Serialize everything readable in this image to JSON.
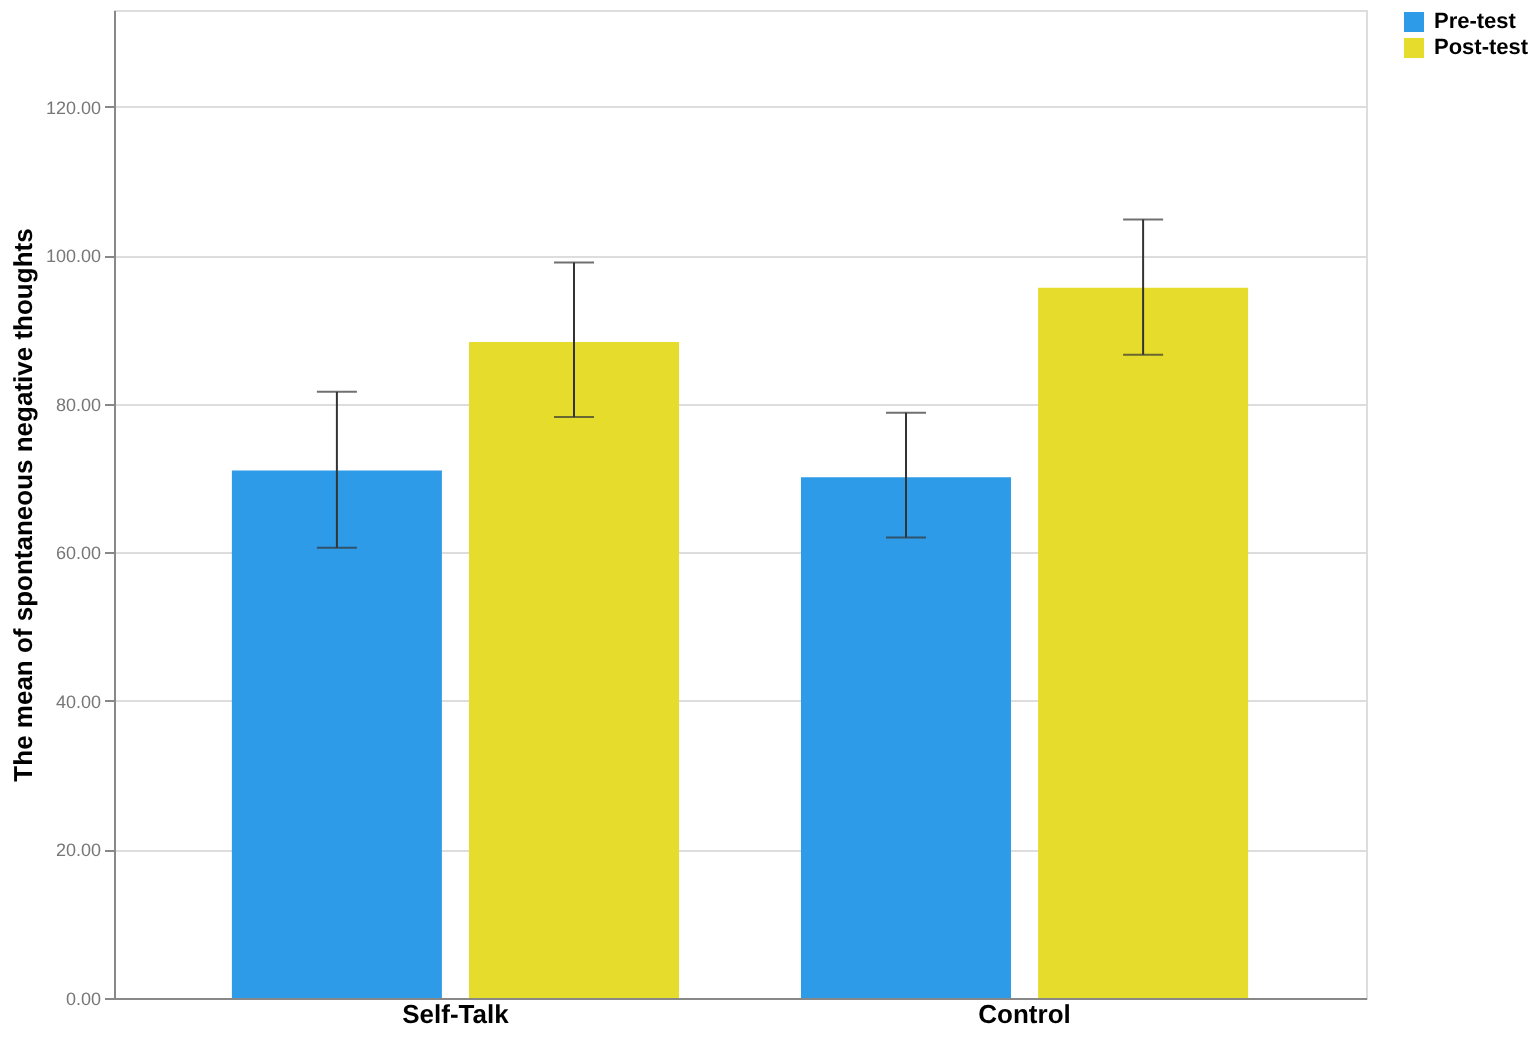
{
  "chart_data": {
    "type": "bar",
    "ylabel": "The mean of spontaneous negative thoughts",
    "categories": [
      "Self-Talk",
      "Control"
    ],
    "series": [
      {
        "name": "Pre-test",
        "color": "#2e9be8",
        "values": [
          71,
          70.1
        ],
        "errors": [
          [
            60.6,
            81.6
          ],
          [
            62,
            78.8
          ]
        ]
      },
      {
        "name": "Post-test",
        "color": "#e6dc2c",
        "values": [
          88.3,
          95.6
        ],
        "errors": [
          [
            78.2,
            99
          ],
          [
            86.6,
            104.8
          ]
        ]
      }
    ],
    "ylim": [
      0,
      133
    ],
    "yticks": [
      {
        "value": 0,
        "label": "0.00"
      },
      {
        "value": 20,
        "label": "20.00"
      },
      {
        "value": 40,
        "label": "40.00"
      },
      {
        "value": 60,
        "label": "60.00"
      },
      {
        "value": 80,
        "label": "80.00"
      },
      {
        "value": 100,
        "label": "100.00"
      },
      {
        "value": 120,
        "label": "120.00"
      }
    ],
    "grid": "y",
    "legend": "top right"
  }
}
